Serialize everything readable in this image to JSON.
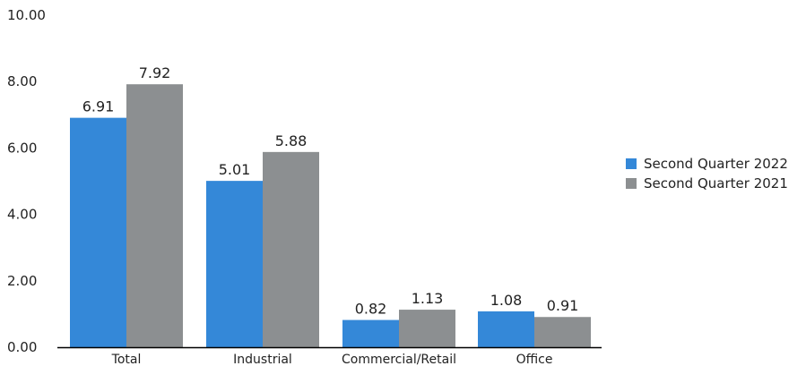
{
  "chart_data": {
    "type": "bar",
    "categories": [
      "Total",
      "Industrial",
      "Commercial/Retail",
      "Office"
    ],
    "series": [
      {
        "name": "Second Quarter 2022",
        "values": [
          6.91,
          5.01,
          0.82,
          1.08
        ],
        "color": "#3488d8"
      },
      {
        "name": "Second Quarter 2021",
        "values": [
          7.92,
          5.88,
          1.13,
          0.91
        ],
        "color": "#8c8f91"
      }
    ],
    "y_ticks": [
      "0.00",
      "2.00",
      "4.00",
      "6.00",
      "8.00",
      "10.00"
    ],
    "ylim": [
      0,
      10
    ],
    "title": "",
    "xlabel": "",
    "ylabel": "",
    "grid": false,
    "legend_position": "right"
  }
}
